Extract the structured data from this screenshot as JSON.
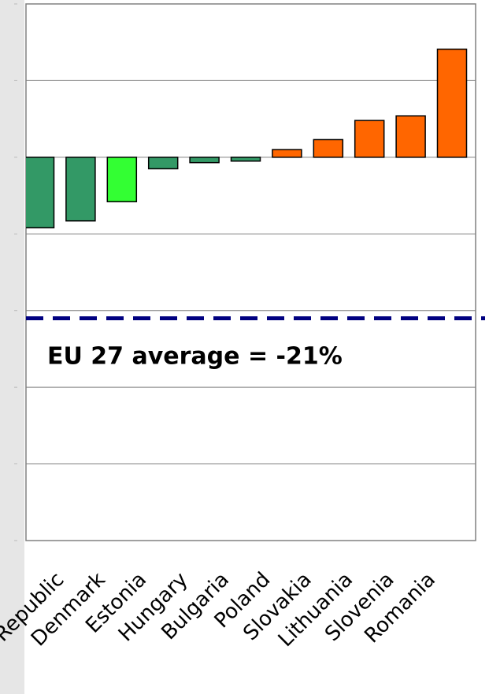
{
  "chart_data": {
    "type": "bar",
    "categories": [
      null,
      "Czech Republic",
      "Denmark",
      "Estonia",
      "Hungary",
      "Bulgaria",
      "Poland",
      "Slovakia",
      "Lithuania",
      "Slovenia",
      "Romania"
    ],
    "values": [
      -9.2,
      -8.3,
      -5.8,
      -1.5,
      -0.7,
      -0.5,
      1.0,
      2.3,
      4.8,
      5.4,
      14.1
    ],
    "colors": [
      "#339966",
      "#339966",
      "#33ff33",
      "#339966",
      "#339966",
      "#339966",
      "#ff6600",
      "#ff6600",
      "#ff6600",
      "#ff6600",
      "#ff6600"
    ],
    "ylim": [
      -50,
      20
    ],
    "yticks": [
      -50,
      -40,
      -30,
      -20,
      -10,
      0,
      10,
      20
    ],
    "grid": true,
    "reference_line": {
      "value": -21,
      "color": "#000080",
      "label": "EU 27 average = -21%"
    }
  }
}
